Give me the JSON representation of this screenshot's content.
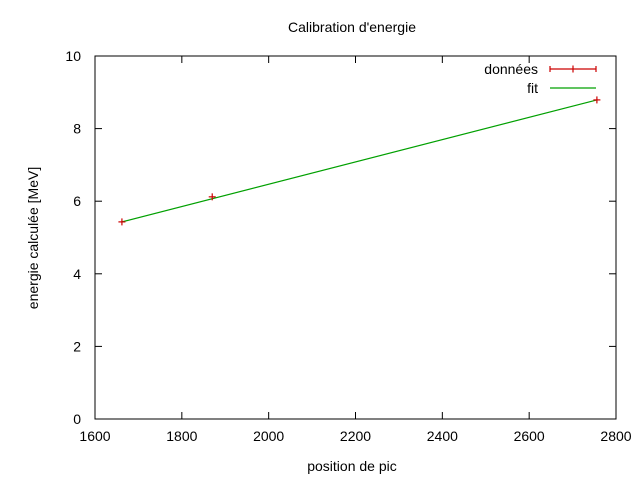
{
  "chart_data": {
    "type": "scatter",
    "title": "Calibration d'energie",
    "xlabel": "position de pic",
    "ylabel": "energie calculée [MeV]",
    "xlim": [
      1600,
      2800
    ],
    "ylim": [
      0,
      10
    ],
    "xticks": [
      1600,
      1800,
      2000,
      2200,
      2400,
      2600,
      2800
    ],
    "yticks": [
      0,
      2,
      4,
      6,
      8,
      10
    ],
    "grid": false,
    "legend_position": "top-right",
    "series": [
      {
        "name": "données",
        "kind": "points",
        "marker": "plus-with-errorbars",
        "color": "#cc0000",
        "x": [
          1662,
          1870,
          2756
        ],
        "y": [
          5.43,
          6.12,
          8.79
        ]
      },
      {
        "name": "fit",
        "kind": "line",
        "color": "#00a000",
        "x": [
          1662,
          2756
        ],
        "y": [
          5.43,
          8.79
        ]
      }
    ]
  }
}
